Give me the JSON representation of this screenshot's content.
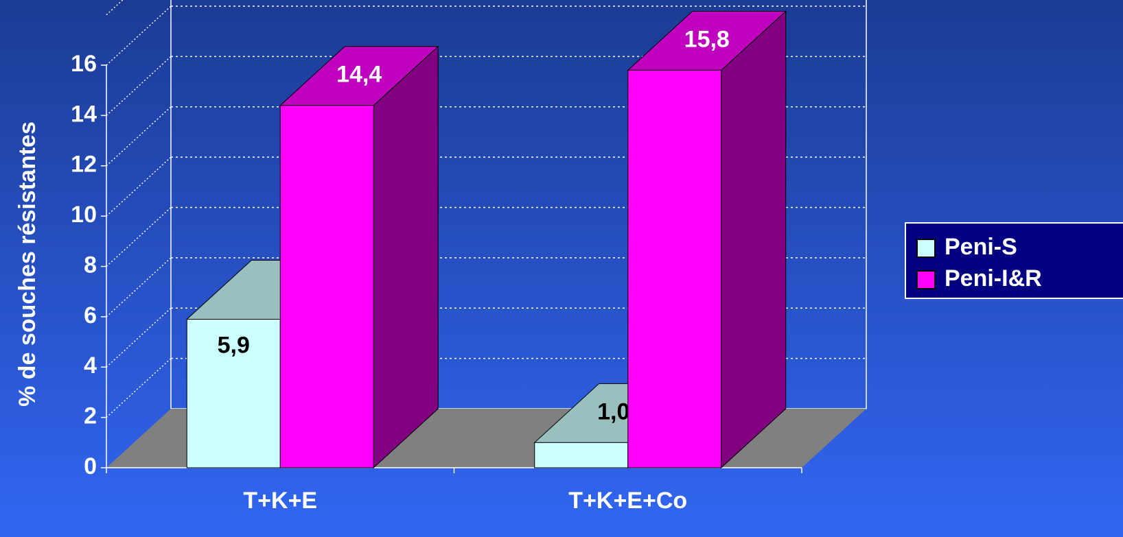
{
  "chart_data": {
    "type": "bar3d",
    "y_label": "% de souches résistantes",
    "categories": [
      "T+K+E",
      "T+K+E+Co"
    ],
    "series": [
      {
        "name": "Peni-S",
        "color": "#ccffff",
        "values": [
          5.9,
          1.0
        ],
        "value_labels": [
          "5,9",
          "1,0"
        ]
      },
      {
        "name": "Peni-I&R",
        "color": "#ff00ff",
        "values": [
          14.4,
          15.8
        ],
        "value_labels": [
          "14,4",
          "15,8"
        ]
      }
    ],
    "ylim": [
      0,
      18
    ],
    "yticks": [
      0,
      2,
      4,
      6,
      8,
      10,
      12,
      14,
      16
    ],
    "grid": true,
    "legend": "right"
  }
}
